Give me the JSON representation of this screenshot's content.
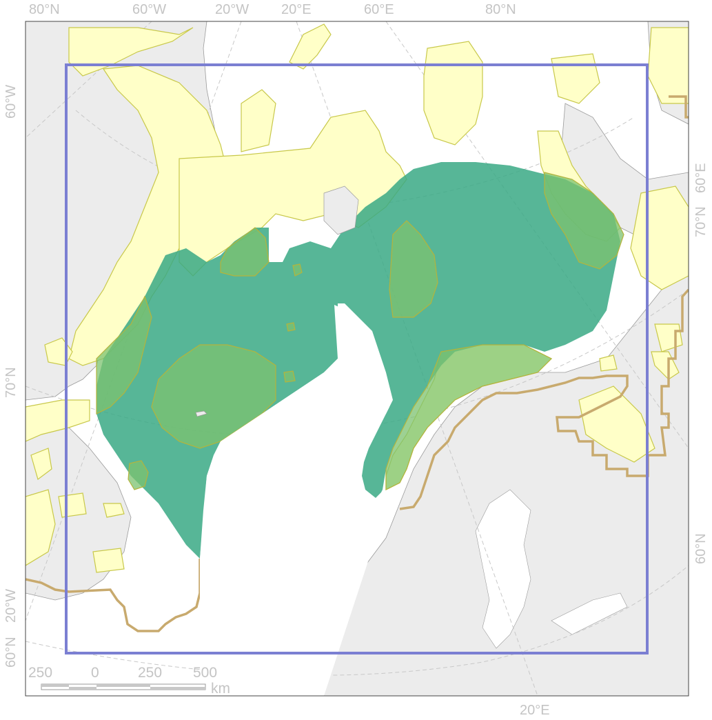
{
  "map": {
    "colors": {
      "frame": "#444444",
      "land": "#ececec",
      "coast": "#9a9a9a",
      "ocean": "#ffffff",
      "graticule": "#c8c8c8",
      "yellow_fill": "#ffffc8",
      "yellow_stroke": "#c8c84a",
      "teal_fill": "#3aa985",
      "green_fill": "#7cc16f",
      "green_stroke": "#b4b43c",
      "tan_line": "#c8aa6e",
      "extent_box": "#7b7fd2"
    },
    "graticule_labels": {
      "top": [
        "80°N",
        "60°W",
        "20°W",
        "20°E",
        "60°E",
        "80°N"
      ],
      "left": [
        "60°W",
        "70°N",
        "20°W",
        "60°N"
      ],
      "right": [
        "70°N",
        "60°E",
        "60°N"
      ],
      "bottom": [
        "20°E"
      ]
    },
    "scale_bar": {
      "ticks": [
        "250",
        "0",
        "250",
        "500"
      ],
      "unit": "km"
    }
  }
}
